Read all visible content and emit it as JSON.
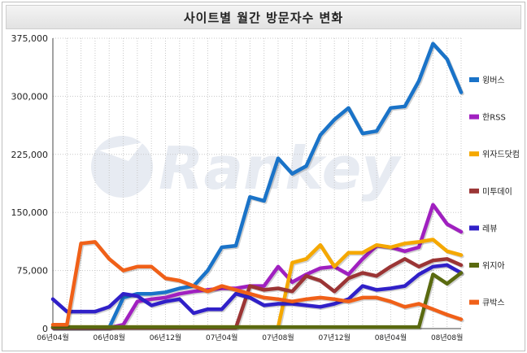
{
  "title": "사이트별 월간 방문자수 변화",
  "watermark": "Rankey",
  "chart_data": {
    "type": "line",
    "title": "사이트별 월간 방문자수 변화",
    "xlabel": "",
    "ylabel": "",
    "ylim": [
      0,
      375000
    ],
    "yticks": [
      "0",
      "75,000",
      "150,000",
      "225,000",
      "300,000",
      "375,000"
    ],
    "ytick_values": [
      0,
      75000,
      150000,
      225000,
      300000,
      375000
    ],
    "x": [
      "06년04월",
      "06년05월",
      "06년06월",
      "06년07월",
      "06년08월",
      "06년09월",
      "06년10월",
      "06년11월",
      "06년12월",
      "07년01월",
      "07년02월",
      "07년03월",
      "07년04월",
      "07년05월",
      "07년06월",
      "07년07월",
      "07년08월",
      "07년09월",
      "07년10월",
      "07년11월",
      "07년12월",
      "08년01월",
      "08년02월",
      "08년03월",
      "08년04월",
      "08년05월",
      "08년06월",
      "08년07월",
      "08년08월",
      "08년09월"
    ],
    "xtick_labels": [
      {
        "index": 0,
        "label": "06년04월"
      },
      {
        "index": 4,
        "label": "06년08월"
      },
      {
        "index": 8,
        "label": "06년12월"
      },
      {
        "index": 12,
        "label": "07년04월"
      },
      {
        "index": 16,
        "label": "07년08월"
      },
      {
        "index": 20,
        "label": "07년12월"
      },
      {
        "index": 24,
        "label": "08년04월"
      },
      {
        "index": 28,
        "label": "08년08월"
      }
    ],
    "grid": true,
    "legend_position": "right",
    "series": [
      {
        "name": "윙버스",
        "color": "#1a73c8",
        "values": [
          1000,
          1000,
          1000,
          1000,
          1000,
          40000,
          45000,
          45000,
          47000,
          52000,
          55000,
          75000,
          105000,
          107000,
          170000,
          165000,
          220000,
          200000,
          210000,
          250000,
          270000,
          285000,
          252000,
          255000,
          285000,
          287000,
          320000,
          368000,
          348000,
          305000
        ]
      },
      {
        "name": "한RSS",
        "color": "#a020c0",
        "values": [
          1000,
          1000,
          1000,
          1000,
          1000,
          5000,
          35000,
          38000,
          40000,
          45000,
          48000,
          50000,
          52000,
          52000,
          55000,
          55000,
          80000,
          60000,
          70000,
          78000,
          80000,
          70000,
          90000,
          107000,
          105000,
          100000,
          105000,
          160000,
          135000,
          125000
        ]
      },
      {
        "name": "위자드닷컴",
        "color": "#f5a800",
        "values": [
          2000,
          2000,
          2000,
          2000,
          2000,
          2000,
          2000,
          2000,
          2000,
          2000,
          2000,
          2000,
          2000,
          2000,
          2000,
          2000,
          2000,
          85000,
          90000,
          108000,
          80000,
          98000,
          98000,
          108000,
          105000,
          110000,
          112000,
          115000,
          100000,
          95000
        ]
      },
      {
        "name": "미투데이",
        "color": "#9b3535",
        "values": [
          1000,
          1000,
          1000,
          1000,
          1000,
          1000,
          1000,
          1000,
          1000,
          1000,
          1000,
          1000,
          1000,
          1000,
          55000,
          50000,
          52000,
          48000,
          68000,
          62000,
          48000,
          65000,
          72000,
          68000,
          80000,
          90000,
          80000,
          88000,
          90000,
          82000
        ]
      },
      {
        "name": "레뷰",
        "color": "#3020c8",
        "values": [
          38000,
          22000,
          22000,
          22000,
          28000,
          45000,
          42000,
          30000,
          35000,
          38000,
          20000,
          25000,
          25000,
          45000,
          40000,
          30000,
          32000,
          32000,
          30000,
          28000,
          32000,
          38000,
          55000,
          50000,
          52000,
          55000,
          70000,
          80000,
          82000,
          72000
        ]
      },
      {
        "name": "위지아",
        "color": "#5a6a10",
        "values": [
          2000,
          2000,
          2000,
          2000,
          2000,
          2000,
          2000,
          2000,
          2000,
          2000,
          2000,
          2000,
          2000,
          2000,
          2000,
          2000,
          2000,
          2000,
          2000,
          2000,
          2000,
          2000,
          2000,
          2000,
          2000,
          2000,
          2000,
          70000,
          58000,
          72000
        ]
      },
      {
        "name": "큐박스",
        "color": "#f06018",
        "values": [
          5000,
          5000,
          110000,
          112000,
          90000,
          75000,
          80000,
          80000,
          65000,
          62000,
          55000,
          48000,
          55000,
          50000,
          45000,
          40000,
          38000,
          35000,
          38000,
          40000,
          38000,
          35000,
          40000,
          40000,
          35000,
          28000,
          32000,
          25000,
          18000,
          12000
        ]
      }
    ]
  }
}
